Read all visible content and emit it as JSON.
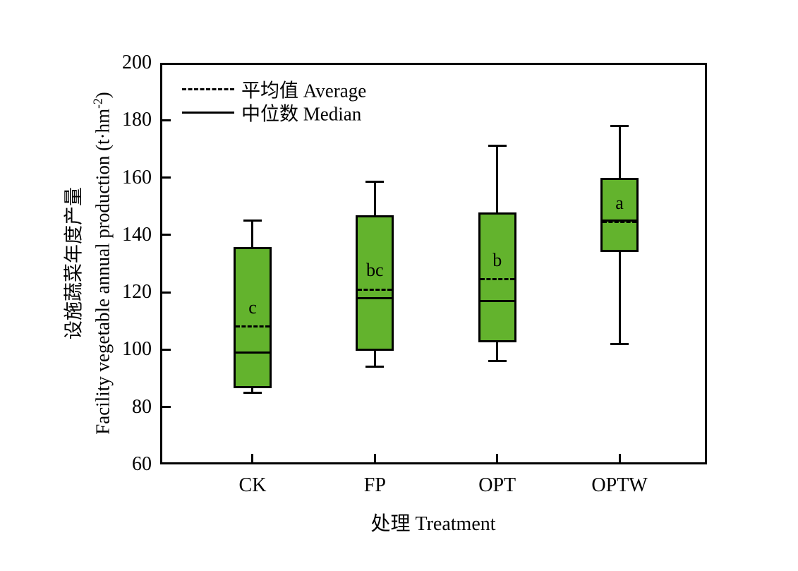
{
  "chart_data": {
    "type": "boxplot",
    "title": "",
    "xlabel": "处理 Treatment",
    "ylabel": {
      "line1": "设施蔬菜年度产量",
      "line2_main": "Facility vegetable annual production (t·hm",
      "line2_sup": "-2",
      "line2_end": ")"
    },
    "ylim": [
      60,
      200
    ],
    "yticks": [
      60,
      80,
      100,
      120,
      140,
      160,
      180,
      200
    ],
    "categories": [
      "CK",
      "FP",
      "OPT",
      "OPTW"
    ],
    "legend": [
      {
        "style": "dashed",
        "label": "平均值 Average"
      },
      {
        "style": "solid",
        "label": "中位数 Median"
      }
    ],
    "colors": {
      "box_fill": "#63b32d",
      "line": "#000000",
      "background": "#ffffff"
    },
    "grid": false,
    "legend_position": "top-left-inside",
    "boxes": [
      {
        "category": "CK",
        "whisker_low": 85,
        "q1": 87,
        "median": 99,
        "mean": 108,
        "q3": 135.5,
        "whisker_high": 145,
        "sig_label": "c"
      },
      {
        "category": "FP",
        "whisker_low": 94,
        "q1": 100,
        "median": 118,
        "mean": 121,
        "q3": 146.5,
        "whisker_high": 158.5,
        "sig_label": "bc"
      },
      {
        "category": "OPT",
        "whisker_low": 96,
        "q1": 103,
        "median": 117,
        "mean": 124.5,
        "q3": 147.5,
        "whisker_high": 171,
        "sig_label": "b"
      },
      {
        "category": "OPTW",
        "whisker_low": 102,
        "q1": 134.5,
        "median": 145,
        "mean": 144.5,
        "q3": 159.5,
        "whisker_high": 178,
        "sig_label": "a"
      }
    ]
  }
}
